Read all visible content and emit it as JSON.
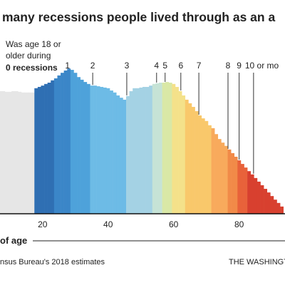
{
  "chart_data": {
    "type": "bar",
    "title": "many recessions people lived through as an a",
    "note_lines": [
      "Was age 18 or",
      "older during"
    ],
    "note_bold": "0 recessions",
    "x_label": "of age",
    "source": "nsus Bureau's 2018 estimates",
    "credit": "THE WASHINGTON",
    "x": [
      7,
      8,
      9,
      10,
      11,
      12,
      13,
      14,
      15,
      16,
      17,
      18,
      19,
      20,
      21,
      22,
      23,
      24,
      25,
      26,
      27,
      28,
      29,
      30,
      31,
      32,
      33,
      34,
      35,
      36,
      37,
      38,
      39,
      40,
      41,
      42,
      43,
      44,
      45,
      46,
      47,
      48,
      49,
      50,
      51,
      52,
      53,
      54,
      55,
      56,
      57,
      58,
      59,
      60,
      61,
      62,
      63,
      64,
      65,
      66,
      67,
      68,
      69,
      70,
      71,
      72,
      73,
      74,
      75,
      76,
      77,
      78,
      79,
      80,
      81,
      82,
      83,
      84,
      85,
      86,
      87,
      88,
      89,
      90,
      91,
      92,
      93
    ],
    "values": [
      3.74,
      3.74,
      3.72,
      3.72,
      3.74,
      3.74,
      3.72,
      3.7,
      3.7,
      3.7,
      3.7,
      3.83,
      3.87,
      3.91,
      3.96,
      4.0,
      4.07,
      4.13,
      4.22,
      4.3,
      4.37,
      4.43,
      4.39,
      4.3,
      4.17,
      4.09,
      4.02,
      3.96,
      3.91,
      3.91,
      3.89,
      3.87,
      3.85,
      3.83,
      3.76,
      3.7,
      3.61,
      3.54,
      3.48,
      3.59,
      3.74,
      3.83,
      3.83,
      3.85,
      3.87,
      3.87,
      3.91,
      3.96,
      3.98,
      4.0,
      4.0,
      4.02,
      4.0,
      3.96,
      3.87,
      3.74,
      3.61,
      3.48,
      3.37,
      3.26,
      3.13,
      3.0,
      2.91,
      2.83,
      2.7,
      2.61,
      2.43,
      2.28,
      2.17,
      2.07,
      1.96,
      1.85,
      1.74,
      1.63,
      1.52,
      1.41,
      1.3,
      1.2,
      1.09,
      0.98,
      0.87,
      0.76,
      0.65,
      0.54,
      0.43,
      0.33,
      0.22
    ],
    "bands": [
      {
        "from": 7,
        "color": "#e6e6e6"
      },
      {
        "from": 18,
        "color": "#2f6fb3"
      },
      {
        "from": 24,
        "color": "#3b86c8"
      },
      {
        "from": 29,
        "color": "#4ea2da"
      },
      {
        "from": 35,
        "color": "#6dbbe6"
      },
      {
        "from": 46,
        "color": "#a4d2e4"
      },
      {
        "from": 54,
        "color": "#c6e3d6"
      },
      {
        "from": 57,
        "color": "#d9e8a6"
      },
      {
        "from": 60,
        "color": "#f4e18a"
      },
      {
        "from": 64,
        "color": "#f9c86b"
      },
      {
        "from": 72,
        "color": "#f8aa5c"
      },
      {
        "from": 77,
        "color": "#f18a48"
      },
      {
        "from": 80,
        "color": "#e8623a"
      },
      {
        "from": 83,
        "color": "#d8402f"
      }
    ],
    "labels": [
      {
        "label": "1",
        "x": 27.6
      },
      {
        "label": "2",
        "x": 35.3
      },
      {
        "label": "3",
        "x": 45.7
      },
      {
        "label": "4",
        "x": 54.8
      },
      {
        "label": "5",
        "x": 57.4
      },
      {
        "label": "6",
        "x": 62.2
      },
      {
        "label": "7",
        "x": 67.7
      },
      {
        "label": "8",
        "x": 76.6
      },
      {
        "label": "9",
        "x": 80
      },
      {
        "label": "10 or mo",
        "x": 84.4
      }
    ],
    "xlim": [
      7,
      94
    ],
    "xticks": [
      20,
      40,
      60,
      80
    ],
    "ylim": [
      0,
      5
    ]
  }
}
